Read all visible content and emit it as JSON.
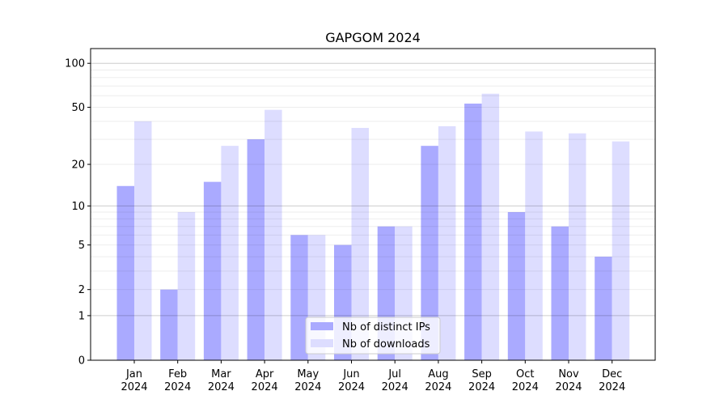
{
  "chart_data": {
    "type": "bar",
    "title": "GAPGOM 2024",
    "xlabel": "",
    "ylabel": "",
    "yscale": "log(1+y)",
    "ylim": [
      0,
      120
    ],
    "yticks": [
      0,
      1,
      2,
      5,
      10,
      20,
      50,
      100
    ],
    "grid": true,
    "legend_placement": "lower-center",
    "categories": [
      "Jan\n2024",
      "Feb\n2024",
      "Mar\n2024",
      "Apr\n2024",
      "May\n2024",
      "Jun\n2024",
      "Jul\n2024",
      "Aug\n2024",
      "Sep\n2024",
      "Oct\n2024",
      "Nov\n2024",
      "Dec\n2024"
    ],
    "series": [
      {
        "name": "Nb of distinct IPs",
        "color": "#aaaaff",
        "values": [
          14,
          2,
          15,
          30,
          6,
          5,
          7,
          27,
          53,
          9,
          7,
          4
        ]
      },
      {
        "name": "Nb of downloads",
        "color": "#ddddff",
        "values": [
          40,
          9,
          27,
          48,
          6,
          36,
          7,
          37,
          62,
          34,
          33,
          29
        ]
      }
    ]
  }
}
